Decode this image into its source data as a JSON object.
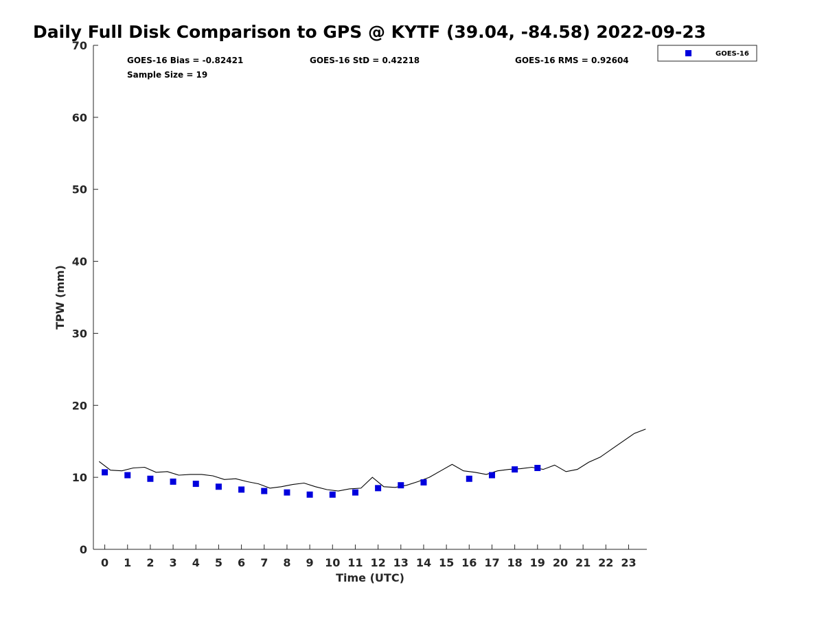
{
  "chart_data": {
    "type": "scatter",
    "title": "Daily Full Disk Comparison to GPS @ KYTF (39.04, -84.58) 2022-09-23",
    "xlabel": "Time (UTC)",
    "ylabel": "TPW (mm)",
    "xlim": [
      -0.5,
      23.8
    ],
    "ylim": [
      0,
      70
    ],
    "x_ticks": [
      "0",
      "1",
      "2",
      "3",
      "4",
      "5",
      "6",
      "7",
      "8",
      "9",
      "10",
      "11",
      "12",
      "13",
      "14",
      "15",
      "16",
      "17",
      "18",
      "19",
      "20",
      "21",
      "22",
      "23"
    ],
    "y_ticks": [
      "0",
      "10",
      "20",
      "30",
      "40",
      "50",
      "60",
      "70"
    ],
    "grid": false,
    "legend_position": "top-right, outside plot",
    "stats": {
      "bias": "GOES-16 Bias = -0.82421",
      "std": "GOES-16 StD = 0.42218",
      "rms": "GOES-16 RMS = 0.92604",
      "sample_size": "Sample Size = 19"
    },
    "series": [
      {
        "kind": "line",
        "color": "#000000",
        "x": [
          -0.25,
          0.25,
          0.75,
          1.25,
          1.75,
          2.25,
          2.75,
          3.25,
          3.75,
          4.25,
          4.75,
          5.25,
          5.75,
          6.25,
          6.75,
          7.25,
          7.75,
          8.25,
          8.75,
          9.25,
          9.75,
          10.25,
          10.75,
          11.25,
          11.75,
          12.25,
          12.75,
          13.25,
          13.75,
          14.25,
          14.75,
          15.25,
          15.75,
          16.25,
          16.75,
          17.25,
          17.75,
          18.25,
          18.75,
          19.25,
          19.75,
          20.25,
          20.75,
          21.25,
          21.75,
          22.25,
          22.75,
          23.25,
          23.75
        ],
        "y": [
          12.2,
          11.0,
          10.9,
          11.3,
          11.4,
          10.7,
          10.8,
          10.3,
          10.4,
          10.4,
          10.2,
          9.7,
          9.8,
          9.4,
          9.1,
          8.5,
          8.7,
          9.0,
          9.2,
          8.7,
          8.3,
          8.1,
          8.4,
          8.5,
          10.0,
          8.7,
          8.6,
          8.9,
          9.4,
          10.0,
          10.9,
          11.8,
          10.9,
          10.7,
          10.4,
          10.9,
          11.1,
          11.2,
          11.4,
          11.1,
          11.7,
          10.8,
          11.1,
          12.1,
          12.8,
          13.9,
          15.0,
          16.1,
          16.7
        ]
      },
      {
        "kind": "markers",
        "name": "GOES-16",
        "color": "#0000dd",
        "x": [
          0,
          1,
          2,
          3,
          4,
          5,
          6,
          7,
          8,
          9,
          10,
          11,
          12,
          13,
          14,
          16,
          17,
          18,
          19
        ],
        "y": [
          10.7,
          10.3,
          9.8,
          9.4,
          9.1,
          8.7,
          8.3,
          8.1,
          7.9,
          7.6,
          7.6,
          7.9,
          8.5,
          8.9,
          9.3,
          9.8,
          10.3,
          11.1,
          11.3
        ]
      }
    ]
  }
}
